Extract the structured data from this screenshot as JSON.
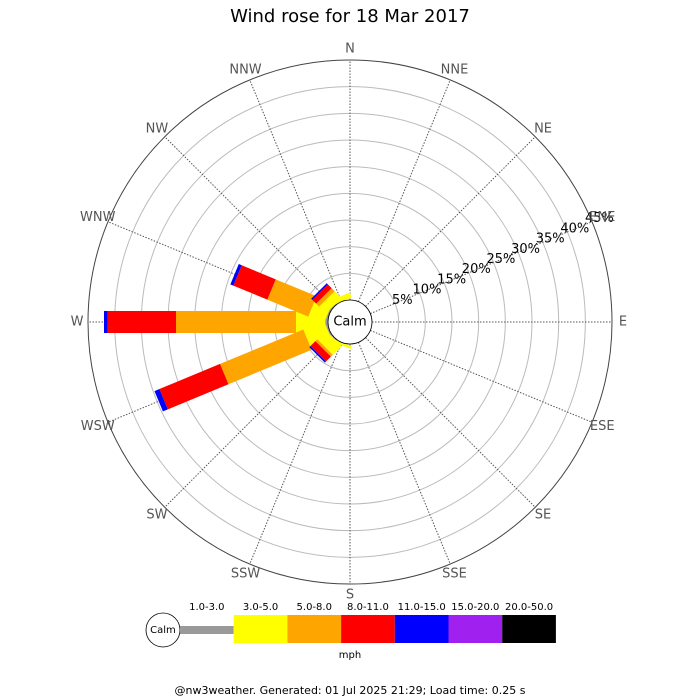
{
  "chart_data": {
    "type": "windrose",
    "title": "Wind rose for 18 Mar 2017",
    "directions": [
      "N",
      "NNE",
      "NE",
      "ENE",
      "E",
      "ESE",
      "SE",
      "SSE",
      "S",
      "SSW",
      "SW",
      "WSW",
      "W",
      "WNW",
      "NW",
      "NNW"
    ],
    "series": [
      {
        "name": "1.0-3.0",
        "color": "#999999",
        "values": [
          0,
          0,
          0,
          0,
          0,
          0,
          0,
          0,
          0,
          0,
          0.2,
          0.3,
          0.5,
          0.3,
          0.2,
          0
        ]
      },
      {
        "name": "3.0-5.0",
        "color": "#ffff00",
        "values": [
          0,
          0,
          0,
          0,
          0,
          0,
          0,
          0,
          0,
          0.5,
          2.3,
          4.2,
          5.5,
          3.2,
          1.8,
          1.0
        ]
      },
      {
        "name": "5.0-8.0",
        "color": "#ffa500",
        "values": [
          0,
          0,
          0,
          0,
          0,
          0,
          0,
          0,
          0,
          0,
          0.5,
          16.9,
          22.5,
          8.3,
          0.8,
          0
        ]
      },
      {
        "name": "8.0-11.0",
        "color": "#ff0000",
        "values": [
          0,
          0,
          0,
          0,
          0,
          0,
          0,
          0,
          0,
          0,
          1.3,
          12.3,
          12.8,
          6.9,
          1.0,
          0
        ]
      },
      {
        "name": "11.0-15.0",
        "color": "#0000ff",
        "values": [
          0,
          0,
          0,
          0,
          0,
          0,
          0,
          0,
          0,
          0,
          0.3,
          1.0,
          0.7,
          0.6,
          0.3,
          0
        ]
      },
      {
        "name": "15.0-20.0",
        "color": "#a020f0",
        "values": [
          0,
          0,
          0,
          0,
          0,
          0,
          0,
          0,
          0,
          0,
          0,
          0,
          0,
          0,
          0,
          0
        ]
      },
      {
        "name": "20.0-50.0",
        "color": "#000000",
        "values": [
          0,
          0,
          0,
          0,
          0,
          0,
          0,
          0,
          0,
          0,
          0,
          0,
          0,
          0,
          0,
          0
        ]
      }
    ],
    "rlim": [
      0,
      45
    ],
    "rticks": [
      {
        "value": 5,
        "label": "5%"
      },
      {
        "value": 10,
        "label": "10%"
      },
      {
        "value": 15,
        "label": "15%"
      },
      {
        "value": 20,
        "label": "20%"
      },
      {
        "value": 25,
        "label": "25%"
      },
      {
        "value": 30,
        "label": "30%"
      },
      {
        "value": 35,
        "label": "35%"
      },
      {
        "value": 40,
        "label": "40%"
      },
      {
        "value": 45,
        "label": "45%"
      }
    ],
    "calm_label": "Calm",
    "unit_label": "mph",
    "footer": "@nw3weather. Generated: 01 Jul 2025 21:29; Load time: 0.25 s"
  }
}
